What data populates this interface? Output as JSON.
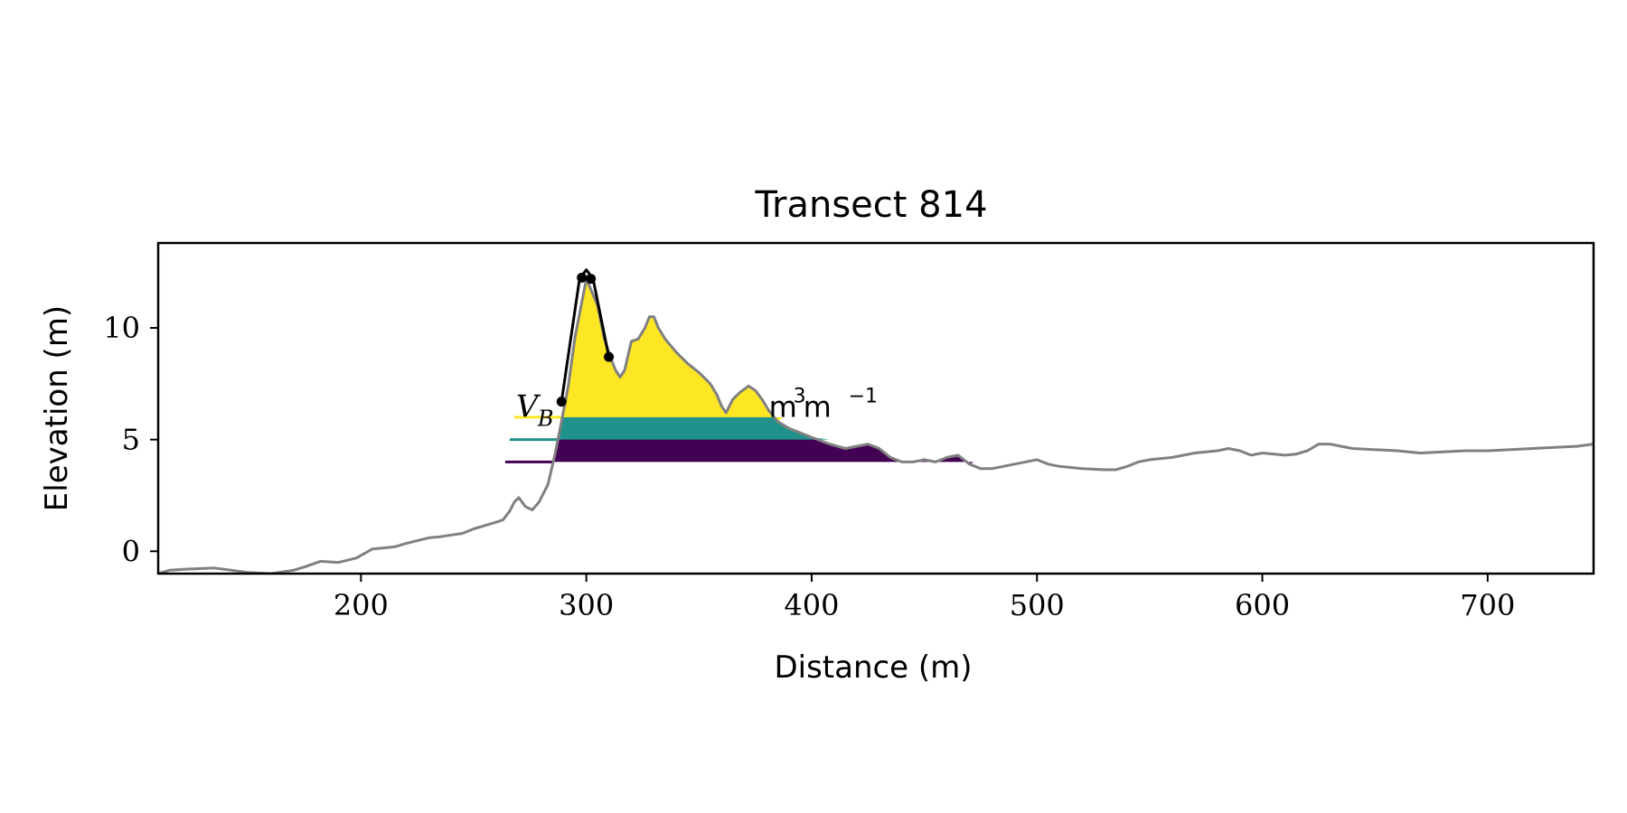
{
  "chart_data": {
    "type": "area",
    "title": "Transect 814",
    "xlabel": "Distance (m)",
    "ylabel": "Elevation (m)",
    "xlim": [
      110,
      747
    ],
    "ylim": [
      -1.0,
      13.8
    ],
    "x_ticks": [
      200,
      300,
      400,
      500,
      600,
      700
    ],
    "y_ticks": [
      0,
      5,
      10
    ],
    "grid": false,
    "profile": {
      "color": "#808080",
      "x": [
        110,
        115,
        122,
        135,
        150,
        160,
        170,
        175,
        182,
        190,
        198,
        205,
        210,
        215,
        220,
        230,
        235,
        245,
        250,
        260,
        263,
        266,
        268,
        270,
        273,
        276,
        279,
        283,
        286,
        289,
        292,
        295,
        300,
        305,
        308,
        311,
        313,
        315,
        317,
        320,
        323,
        326,
        328,
        330,
        332,
        335,
        340,
        345,
        350,
        355,
        358,
        360,
        362,
        365,
        368,
        372,
        375,
        378,
        381,
        385,
        390,
        400,
        408,
        415,
        425,
        430,
        435,
        440,
        445,
        450,
        455,
        460,
        465,
        470,
        475,
        480,
        490,
        500,
        505,
        510,
        520,
        530,
        535,
        540,
        545,
        550,
        560,
        570,
        580,
        585,
        590,
        595,
        600,
        610,
        615,
        620,
        625,
        630,
        640,
        660,
        670,
        680,
        690,
        700,
        710,
        720,
        730,
        740,
        747
      ],
      "y": [
        -1.0,
        -0.85,
        -0.8,
        -0.75,
        -0.95,
        -1.0,
        -0.85,
        -0.7,
        -0.45,
        -0.5,
        -0.3,
        0.1,
        0.15,
        0.2,
        0.35,
        0.6,
        0.65,
        0.8,
        1.0,
        1.3,
        1.4,
        1.8,
        2.2,
        2.4,
        2.0,
        1.85,
        2.2,
        3.0,
        4.3,
        5.8,
        7.4,
        9.6,
        12.2,
        11.0,
        9.5,
        8.6,
        8.1,
        7.8,
        8.1,
        9.4,
        9.5,
        10.0,
        10.5,
        10.5,
        10.0,
        9.5,
        8.9,
        8.4,
        8.0,
        7.5,
        7.0,
        6.5,
        6.2,
        6.8,
        7.1,
        7.4,
        7.2,
        6.8,
        6.3,
        5.8,
        5.5,
        5.1,
        4.8,
        4.6,
        4.8,
        4.6,
        4.2,
        4.0,
        4.0,
        4.1,
        4.0,
        4.2,
        4.3,
        3.9,
        3.7,
        3.7,
        3.9,
        4.1,
        3.9,
        3.8,
        3.7,
        3.65,
        3.65,
        3.8,
        4.0,
        4.1,
        4.2,
        4.4,
        4.5,
        4.6,
        4.5,
        4.3,
        4.4,
        4.3,
        4.35,
        4.5,
        4.8,
        4.8,
        4.6,
        4.5,
        4.4,
        4.45,
        4.5,
        4.5,
        4.55,
        4.6,
        4.65,
        4.7,
        4.8
      ]
    },
    "crest_line": {
      "color": "#000000",
      "x": [
        289,
        297,
        300,
        303,
        310
      ],
      "y": [
        6.7,
        12.2,
        12.6,
        12.2,
        8.7
      ],
      "markers_x": [
        289,
        298,
        302,
        310
      ],
      "markers_y": [
        6.7,
        12.25,
        12.2,
        8.7
      ]
    },
    "bands": [
      {
        "level": 4.0,
        "color": "#440154",
        "line_from_x": 264,
        "right_x": 472
      },
      {
        "level": 5.0,
        "color": "#21918c",
        "line_from_x": 266,
        "right_x": 408
      },
      {
        "level": 6.0,
        "color": "#fde725",
        "line_from_x": 268,
        "right_x": 387
      }
    ],
    "annotations": [
      {
        "symbol": "V",
        "subscript": "B",
        "unit_base": "m",
        "unit_exp": "3",
        "unit_tail": " m",
        "unit_tail_exp": "−1",
        "x": 268,
        "y": 6.5,
        "unit_x": 381
      }
    ]
  }
}
